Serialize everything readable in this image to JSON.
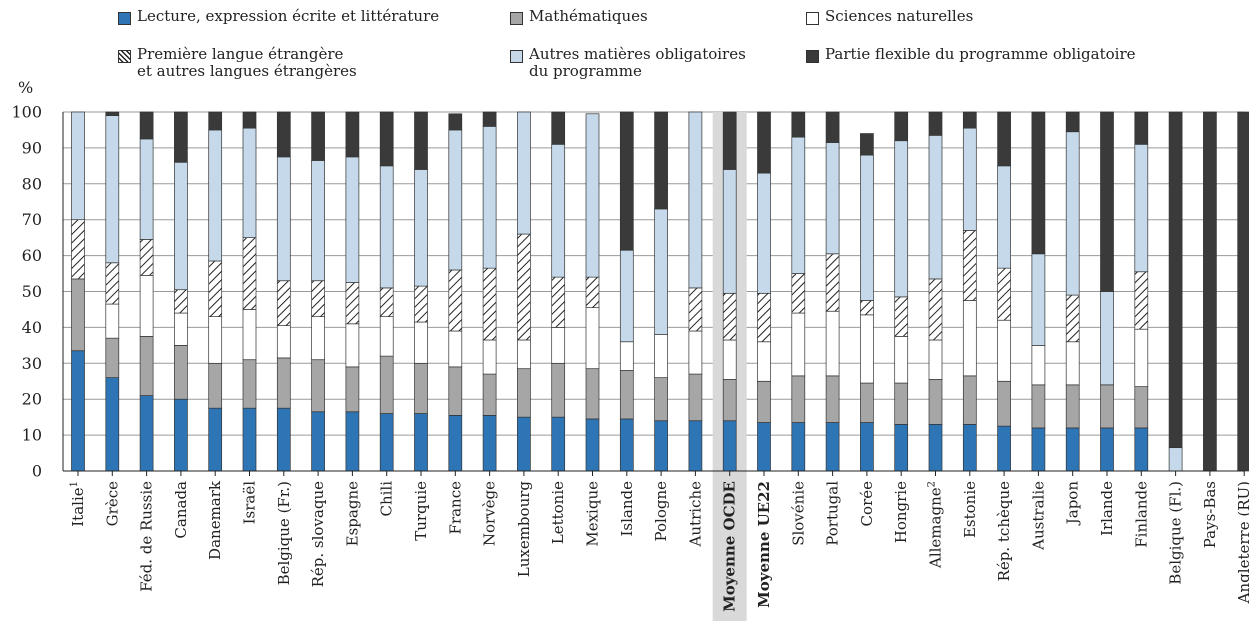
{
  "legend": [
    {
      "label": "Lecture, expression écrite et littérature",
      "color": "#2e75b6",
      "pattern": "solid"
    },
    {
      "label": "Mathématiques",
      "color": "#a6a6a6",
      "pattern": "solid"
    },
    {
      "label": "Sciences naturelles",
      "color": "#ffffff",
      "pattern": "solid"
    },
    {
      "label": "Première langue étrangère\net autres langues étrangères",
      "color": "#ffffff",
      "pattern": "hatch"
    },
    {
      "label": "Autres matières obligatoires\ndu programme",
      "color": "#c5d9ea",
      "pattern": "solid"
    },
    {
      "label": "Partie flexible du programme obligatoire",
      "color": "#3a3a3a",
      "pattern": "solid"
    }
  ],
  "chart_data": {
    "type": "bar",
    "stacked": true,
    "ylabel": "%",
    "ylim": [
      0,
      100
    ],
    "yticks": [
      0,
      10,
      20,
      30,
      40,
      50,
      60,
      70,
      80,
      90,
      100
    ],
    "grid": true,
    "highlight": "Moyenne OCDE",
    "categories": [
      {
        "name": "Italie",
        "sup": "1",
        "bold": false
      },
      {
        "name": "Grèce",
        "sup": "",
        "bold": false
      },
      {
        "name": "Féd. de Russie",
        "sup": "",
        "bold": false
      },
      {
        "name": "Canada",
        "sup": "",
        "bold": false
      },
      {
        "name": "Danemark",
        "sup": "",
        "bold": false
      },
      {
        "name": "Israël",
        "sup": "",
        "bold": false
      },
      {
        "name": "Belgique (Fr.)",
        "sup": "",
        "bold": false
      },
      {
        "name": "Rép. slovaque",
        "sup": "",
        "bold": false
      },
      {
        "name": "Espagne",
        "sup": "",
        "bold": false
      },
      {
        "name": "Chili",
        "sup": "",
        "bold": false
      },
      {
        "name": "Turquie",
        "sup": "",
        "bold": false
      },
      {
        "name": "France",
        "sup": "",
        "bold": false
      },
      {
        "name": "Norvège",
        "sup": "",
        "bold": false
      },
      {
        "name": "Luxembourg",
        "sup": "",
        "bold": false
      },
      {
        "name": "Lettonie",
        "sup": "",
        "bold": false
      },
      {
        "name": "Mexique",
        "sup": "",
        "bold": false
      },
      {
        "name": "Islande",
        "sup": "",
        "bold": false
      },
      {
        "name": "Pologne",
        "sup": "",
        "bold": false
      },
      {
        "name": "Autriche",
        "sup": "",
        "bold": false
      },
      {
        "name": "Moyenne OCDE",
        "sup": "",
        "bold": true
      },
      {
        "name": "Moyenne UE22",
        "sup": "",
        "bold": true
      },
      {
        "name": "Slovénie",
        "sup": "",
        "bold": false
      },
      {
        "name": "Portugal",
        "sup": "",
        "bold": false
      },
      {
        "name": "Corée",
        "sup": "",
        "bold": false
      },
      {
        "name": "Hongrie",
        "sup": "",
        "bold": false
      },
      {
        "name": "Allemagne",
        "sup": "2",
        "bold": false
      },
      {
        "name": "Estonie",
        "sup": "",
        "bold": false
      },
      {
        "name": "Rép. tchèque",
        "sup": "",
        "bold": false
      },
      {
        "name": "Australie",
        "sup": "",
        "bold": false
      },
      {
        "name": "Japon",
        "sup": "",
        "bold": false
      },
      {
        "name": "Irlande",
        "sup": "",
        "bold": false
      },
      {
        "name": "Finlande",
        "sup": "",
        "bold": false
      },
      {
        "name": "Belgique (Fl.)",
        "sup": "",
        "bold": false
      },
      {
        "name": "Pays-Bas",
        "sup": "",
        "bold": false
      },
      {
        "name": "Angleterre (RU)",
        "sup": "",
        "bold": false
      }
    ],
    "series": [
      {
        "name": "Lecture, expression écrite et littérature",
        "values": [
          33.5,
          26,
          21,
          20,
          17.5,
          17.5,
          17.5,
          16.5,
          16.5,
          16,
          16,
          15.5,
          15.5,
          15,
          15,
          14.5,
          14.5,
          14,
          14,
          14,
          13.5,
          13.5,
          13.5,
          13.5,
          13,
          13,
          13,
          12.5,
          12,
          12,
          12,
          12,
          0,
          0,
          0
        ]
      },
      {
        "name": "Mathématiques",
        "values": [
          20,
          11,
          16.5,
          15,
          12.5,
          13.5,
          14,
          14.5,
          12.5,
          16,
          14,
          13.5,
          11.5,
          13.5,
          15,
          14,
          13.5,
          12,
          13,
          11.5,
          11.5,
          13,
          13,
          11,
          11.5,
          12.5,
          13.5,
          12.5,
          12,
          12,
          12,
          11.5,
          0,
          0,
          0
        ]
      },
      {
        "name": "Sciences naturelles",
        "values": [
          0,
          9.5,
          17,
          9,
          13,
          14,
          9,
          12,
          12,
          11,
          11.5,
          10,
          9.5,
          8,
          10,
          17,
          8,
          12,
          12,
          11,
          11,
          17.5,
          18,
          19,
          13,
          11,
          21,
          17,
          11,
          12,
          0,
          16,
          0,
          0,
          0
        ]
      },
      {
        "name": "Première langue étrangère et autres langues étrangères",
        "values": [
          16.5,
          11.5,
          10,
          6.5,
          15.5,
          20,
          12.5,
          10,
          11.5,
          8,
          10,
          17,
          20,
          29.5,
          14,
          8.5,
          0,
          0,
          12,
          13,
          13.5,
          11,
          16,
          4,
          11,
          17,
          19.5,
          14.5,
          0,
          13,
          0,
          16,
          0,
          0,
          0
        ]
      },
      {
        "name": "Autres matières obligatoires du programme",
        "values": [
          30,
          41,
          28,
          35.5,
          36.5,
          30.5,
          34.5,
          33.5,
          35,
          34,
          32.5,
          39,
          39.5,
          34,
          37,
          45.5,
          25.5,
          35,
          49,
          34.5,
          33.5,
          38,
          31,
          40.5,
          43.5,
          40,
          28.5,
          28.5,
          25.5,
          45.5,
          26,
          35.5,
          6.5,
          0,
          0
        ]
      },
      {
        "name": "Partie flexible du programme obligatoire",
        "values": [
          0,
          1,
          7.5,
          14,
          5,
          4.5,
          12.5,
          13.5,
          12.5,
          15,
          16,
          4.5,
          6.5,
          0,
          9,
          0,
          38.5,
          27,
          0,
          16,
          17,
          7,
          8.5,
          6,
          8,
          6.5,
          4.5,
          15,
          39.5,
          5.5,
          50,
          9,
          93.5,
          100,
          100
        ]
      }
    ]
  }
}
